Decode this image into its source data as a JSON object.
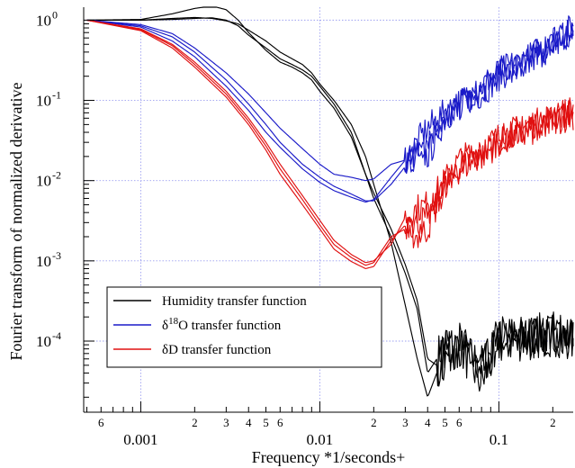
{
  "chart_data": {
    "type": "line",
    "title": "",
    "xlabel": "Frequency *1/seconds+",
    "ylabel": "Fourier transform of normalized derivative",
    "xscale": "log",
    "yscale": "log",
    "xlim": [
      0.00048,
      0.26
    ],
    "ylim": [
      1.3e-05,
      1.45
    ],
    "grid": true,
    "legend_position": "bottom-left",
    "x_major_ticks": [
      {
        "value": 0.001,
        "label": "0.001"
      },
      {
        "value": 0.01,
        "label": "0.01"
      },
      {
        "value": 0.1,
        "label": "0.1"
      }
    ],
    "x_minor_labels": [
      {
        "value": 0.0006,
        "label": "6"
      },
      {
        "value": 0.002,
        "label": "2"
      },
      {
        "value": 0.003,
        "label": "3"
      },
      {
        "value": 0.004,
        "label": "4"
      },
      {
        "value": 0.005,
        "label": "5"
      },
      {
        "value": 0.006,
        "label": "6"
      },
      {
        "value": 0.02,
        "label": "2"
      },
      {
        "value": 0.03,
        "label": "3"
      },
      {
        "value": 0.04,
        "label": "4"
      },
      {
        "value": 0.05,
        "label": "5"
      },
      {
        "value": 0.06,
        "label": "6"
      },
      {
        "value": 0.2,
        "label": "2"
      }
    ],
    "y_major_ticks": [
      {
        "value": 1,
        "base": "10",
        "exp": "0"
      },
      {
        "value": 0.1,
        "base": "10",
        "exp": "-1"
      },
      {
        "value": 0.01,
        "base": "10",
        "exp": "-2"
      },
      {
        "value": 0.001,
        "base": "10",
        "exp": "-3"
      },
      {
        "value": 0.0001,
        "base": "10",
        "exp": "-4"
      }
    ],
    "series": [
      {
        "name": "Humidity transfer function",
        "color": "#000000",
        "noise_floor": 0.00012,
        "curves": [
          {
            "x": [
              0.0005,
              0.001,
              0.0015,
              0.002,
              0.0025,
              0.003,
              0.0035,
              0.004,
              0.005,
              0.006,
              0.007,
              0.008,
              0.009,
              0.01,
              0.012,
              0.015,
              0.018,
              0.02,
              0.025,
              0.03,
              0.035,
              0.04,
              0.045,
              0.05,
              0.06,
              0.08,
              0.1,
              0.15,
              0.2,
              0.26
            ],
            "y": [
              1.0,
              1.0,
              1.02,
              1.05,
              1.07,
              1.0,
              0.85,
              0.65,
              0.45,
              0.33,
              0.28,
              0.24,
              0.2,
              0.15,
              0.09,
              0.04,
              0.012,
              0.006,
              0.002,
              0.0007,
              0.00025,
              4e-05,
              6e-05,
              0.0001,
              8e-05,
              5e-05,
              0.0001,
              0.00012,
              0.00012,
              0.00011
            ]
          },
          {
            "x": [
              0.0005,
              0.001,
              0.0015,
              0.002,
              0.0025,
              0.003,
              0.0035,
              0.004,
              0.005,
              0.006,
              0.007,
              0.008,
              0.009,
              0.01,
              0.012,
              0.015,
              0.018,
              0.02,
              0.025,
              0.03,
              0.035,
              0.04,
              0.045,
              0.05,
              0.06,
              0.08,
              0.1,
              0.15,
              0.2,
              0.26
            ],
            "y": [
              1.0,
              1.02,
              1.2,
              1.4,
              1.5,
              1.35,
              1.0,
              0.7,
              0.42,
              0.3,
              0.26,
              0.22,
              0.18,
              0.13,
              0.08,
              0.035,
              0.012,
              0.007,
              0.0025,
              0.0009,
              0.00032,
              6e-05,
              5e-05,
              7e-05,
              9e-05,
              3e-05,
              9e-05,
              0.00011,
              0.00012,
              0.0001
            ]
          },
          {
            "x": [
              0.0005,
              0.001,
              0.0015,
              0.002,
              0.0025,
              0.003,
              0.0035,
              0.004,
              0.005,
              0.006,
              0.007,
              0.008,
              0.009,
              0.01,
              0.012,
              0.015,
              0.018,
              0.02,
              0.025,
              0.03,
              0.035,
              0.04,
              0.045,
              0.05,
              0.06,
              0.08,
              0.1,
              0.15,
              0.2,
              0.26
            ],
            "y": [
              1.0,
              1.0,
              1.05,
              1.08,
              1.05,
              0.98,
              0.9,
              0.75,
              0.55,
              0.4,
              0.33,
              0.28,
              0.22,
              0.16,
              0.1,
              0.05,
              0.02,
              0.009,
              0.0017,
              0.00028,
              6e-05,
              2e-05,
              4e-05,
              6e-05,
              0.0001,
              4e-05,
              0.00012,
              0.00011,
              0.00013,
              0.00012
            ]
          }
        ]
      },
      {
        "name": "δ18O transfer function",
        "color": "#1a1ac8",
        "curves": [
          {
            "x": [
              0.0005,
              0.001,
              0.0015,
              0.002,
              0.003,
              0.004,
              0.005,
              0.006,
              0.008,
              0.01,
              0.012,
              0.015,
              0.018,
              0.02,
              0.025,
              0.03,
              0.035,
              0.04,
              0.05,
              0.06,
              0.08,
              0.1,
              0.15,
              0.2,
              0.26
            ],
            "y": [
              1.0,
              0.88,
              0.68,
              0.45,
              0.22,
              0.12,
              0.07,
              0.045,
              0.025,
              0.016,
              0.012,
              0.011,
              0.01,
              0.0105,
              0.016,
              0.018,
              0.022,
              0.02,
              0.06,
              0.09,
              0.12,
              0.2,
              0.3,
              0.5,
              0.6
            ]
          },
          {
            "x": [
              0.0005,
              0.001,
              0.0015,
              0.002,
              0.003,
              0.004,
              0.005,
              0.006,
              0.008,
              0.01,
              0.012,
              0.015,
              0.018,
              0.02,
              0.025,
              0.03,
              0.035,
              0.04,
              0.05,
              0.06,
              0.08,
              0.1,
              0.15,
              0.2,
              0.26
            ],
            "y": [
              1.0,
              0.85,
              0.62,
              0.4,
              0.18,
              0.09,
              0.05,
              0.03,
              0.016,
              0.011,
              0.0085,
              0.0068,
              0.0056,
              0.0056,
              0.009,
              0.015,
              0.02,
              0.035,
              0.06,
              0.085,
              0.13,
              0.21,
              0.32,
              0.55,
              0.7
            ]
          },
          {
            "x": [
              0.0005,
              0.001,
              0.0015,
              0.002,
              0.003,
              0.004,
              0.005,
              0.006,
              0.008,
              0.01,
              0.012,
              0.015,
              0.018,
              0.02,
              0.025,
              0.03,
              0.035,
              0.04,
              0.05,
              0.06,
              0.08,
              0.1,
              0.15,
              0.2,
              0.26
            ],
            "y": [
              1.0,
              0.82,
              0.55,
              0.35,
              0.15,
              0.075,
              0.04,
              0.026,
              0.014,
              0.0095,
              0.0075,
              0.0062,
              0.0054,
              0.0058,
              0.011,
              0.018,
              0.03,
              0.045,
              0.07,
              0.09,
              0.15,
              0.23,
              0.35,
              0.6,
              0.8
            ]
          }
        ]
      },
      {
        "name": "δD transfer function",
        "color": "#e01010",
        "curves": [
          {
            "x": [
              0.0005,
              0.001,
              0.0015,
              0.002,
              0.003,
              0.004,
              0.005,
              0.006,
              0.008,
              0.01,
              0.012,
              0.015,
              0.018,
              0.02,
              0.025,
              0.03,
              0.035,
              0.04,
              0.05,
              0.06,
              0.08,
              0.1,
              0.15,
              0.2,
              0.26
            ],
            "y": [
              1.0,
              0.78,
              0.5,
              0.3,
              0.13,
              0.06,
              0.03,
              0.016,
              0.0065,
              0.0032,
              0.0018,
              0.0012,
              0.00095,
              0.001,
              0.0016,
              0.0035,
              0.0045,
              0.005,
              0.01,
              0.018,
              0.025,
              0.035,
              0.05,
              0.06,
              0.08
            ]
          },
          {
            "x": [
              0.0005,
              0.001,
              0.0015,
              0.002,
              0.003,
              0.004,
              0.005,
              0.006,
              0.008,
              0.01,
              0.012,
              0.015,
              0.018,
              0.02,
              0.025,
              0.03,
              0.035,
              0.04,
              0.05,
              0.06,
              0.08,
              0.1,
              0.15,
              0.2,
              0.26
            ],
            "y": [
              1.0,
              0.76,
              0.48,
              0.28,
              0.12,
              0.055,
              0.027,
              0.014,
              0.0058,
              0.0028,
              0.0016,
              0.0011,
              0.00088,
              0.00095,
              0.002,
              0.0025,
              0.002,
              0.0025,
              0.009,
              0.015,
              0.022,
              0.032,
              0.045,
              0.06,
              0.07
            ]
          },
          {
            "x": [
              0.0005,
              0.001,
              0.0015,
              0.002,
              0.003,
              0.004,
              0.005,
              0.006,
              0.008,
              0.01,
              0.012,
              0.015,
              0.018,
              0.02,
              0.025,
              0.03,
              0.035,
              0.04,
              0.05,
              0.06,
              0.08,
              0.1,
              0.15,
              0.2,
              0.26
            ],
            "y": [
              1.0,
              0.74,
              0.45,
              0.26,
              0.11,
              0.05,
              0.024,
              0.012,
              0.005,
              0.0025,
              0.0014,
              0.00098,
              0.0008,
              0.00085,
              0.0018,
              0.0028,
              0.003,
              0.0035,
              0.008,
              0.014,
              0.02,
              0.03,
              0.04,
              0.055,
              0.065
            ]
          }
        ]
      }
    ]
  }
}
